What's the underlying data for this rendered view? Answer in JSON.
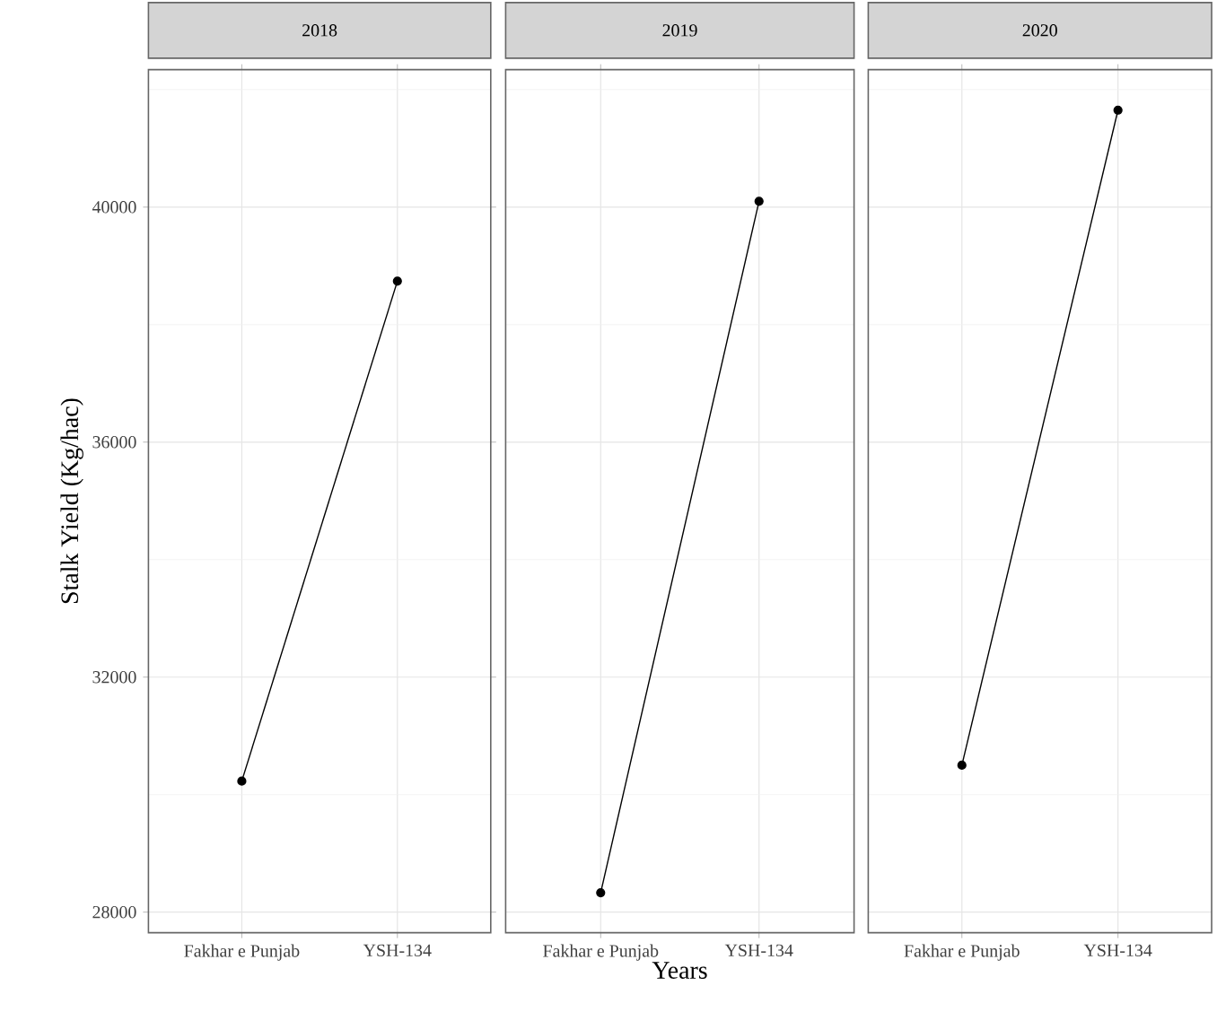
{
  "chart_data": [
    {
      "type": "line",
      "title": "2018",
      "ylabel": "Stalk Yield (Kg/hac)",
      "categories": [
        "Fakhar e Punjab",
        "YSH-134"
      ],
      "values": [
        30230,
        38740
      ],
      "color": "#000000",
      "marker": "circle",
      "grid": true,
      "ylim": [
        27650,
        42340
      ],
      "yticks": [
        28000,
        32000,
        36000,
        40000
      ]
    },
    {
      "type": "line",
      "title": "2019",
      "xlabel": "Years",
      "categories": [
        "Fakhar e Punjab",
        "YSH-134"
      ],
      "values": [
        28330,
        40100
      ],
      "color": "#000000",
      "marker": "circle",
      "grid": true,
      "ylim": [
        27650,
        42340
      ],
      "yticks": [
        28000,
        32000,
        36000,
        40000
      ],
      "tick_labels": "x"
    },
    {
      "type": "line",
      "title": "2020",
      "categories": [
        "Fakhar e Punjab",
        "YSH-134"
      ],
      "values": [
        30500,
        41650
      ],
      "color": "#000000",
      "marker": "circle",
      "grid": true,
      "ylim": [
        27650,
        42340
      ],
      "yticks": [
        28000,
        32000,
        36000,
        40000
      ],
      "tick_labels": "x"
    }
  ]
}
